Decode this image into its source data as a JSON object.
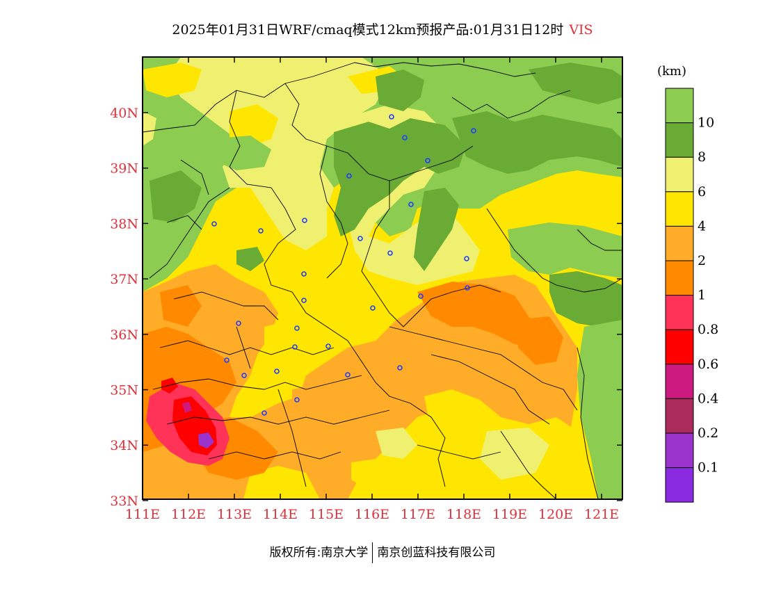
{
  "title": {
    "main": "2025年01月31日WRF/cmaq模式12km预报产品:01月31日12时",
    "variable": "VIS"
  },
  "axes": {
    "lat_labels": [
      "40N",
      "39N",
      "38N",
      "37N",
      "36N",
      "35N",
      "34N",
      "33N"
    ],
    "lon_labels": [
      "111E",
      "112E",
      "113E",
      "114E",
      "115E",
      "116E",
      "117E",
      "118E",
      "119E",
      "120E",
      "121E"
    ],
    "tick_color": "#e0303a"
  },
  "legend": {
    "unit": "(km)",
    "labels": [
      "10",
      "8",
      "6",
      "4",
      "2",
      "1",
      "0.8",
      "0.6",
      "0.4",
      "0.2",
      "0.1"
    ],
    "colors": [
      "#8ccc50",
      "#6aab36",
      "#f0f070",
      "#ffe600",
      "#ffad28",
      "#ff8a00",
      "#ff3358",
      "#ff0000",
      "#cc1a80",
      "#aa2b5c",
      "#9933cc",
      "#8a2be2"
    ]
  },
  "copyright": {
    "left": "版权所有:南京大学",
    "right": "南京创蓝科技有限公司"
  }
}
